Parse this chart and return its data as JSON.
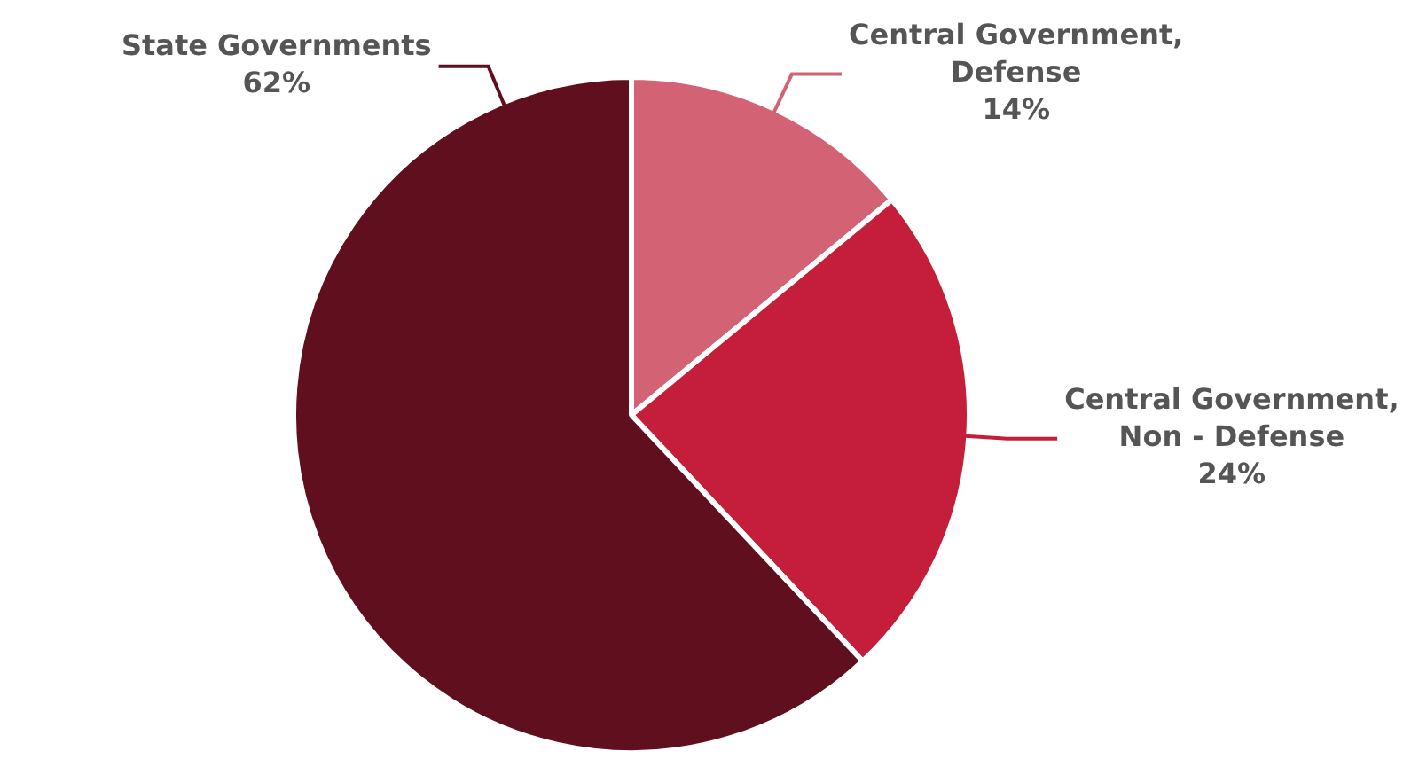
{
  "chart_data": {
    "type": "pie",
    "categories": [
      "Central Government, Defense",
      "Central Government, Non - Defense",
      "State Governments"
    ],
    "values": [
      14,
      24,
      62
    ],
    "colors": [
      "#d46275",
      "#c41e3a",
      "#600f1f"
    ],
    "value_labels": [
      "14%",
      "24%",
      "62%"
    ],
    "legend": false
  }
}
